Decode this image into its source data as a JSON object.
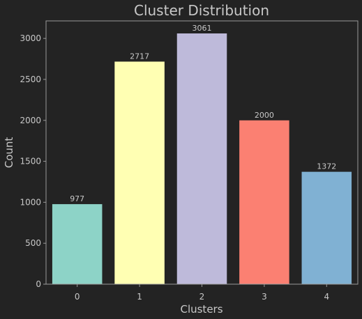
{
  "chart_data": {
    "type": "bar",
    "title": "Cluster Distribution",
    "xlabel": "Clusters",
    "ylabel": "Count",
    "categories": [
      "0",
      "1",
      "2",
      "3",
      "4"
    ],
    "values": [
      977,
      2717,
      3061,
      2000,
      1372
    ],
    "data_labels": [
      "977",
      "2717",
      "3061",
      "2000",
      "1372"
    ],
    "colors": [
      "#8dd3c7",
      "#ffffb3",
      "#bebada",
      "#fb8072",
      "#80b1d3"
    ],
    "ylim": [
      0,
      3214
    ],
    "yticks": [
      0,
      500,
      1000,
      1500,
      2000,
      2500,
      3000
    ],
    "ytick_labels": [
      "0",
      "500",
      "1000",
      "1500",
      "2000",
      "2500",
      "3000"
    ],
    "grid": false,
    "background": "#232323",
    "axes_color": "#9a9a9a",
    "text_color": "#c8c8c8"
  }
}
